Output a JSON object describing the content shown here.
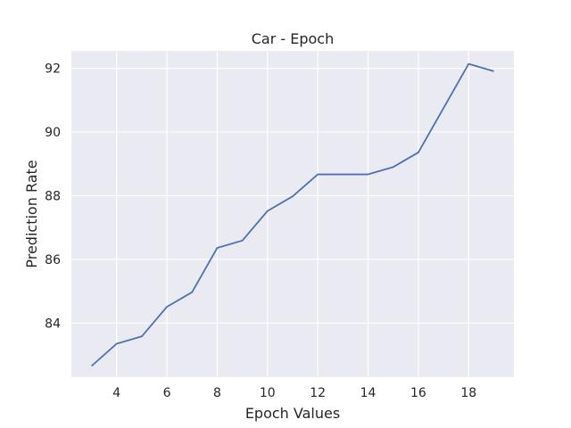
{
  "chart_data": {
    "type": "line",
    "title": "Car - Epoch",
    "xlabel": "Epoch Values",
    "ylabel": "Prediction Rate",
    "x": [
      3,
      4,
      5,
      6,
      7,
      8,
      9,
      10,
      11,
      12,
      13,
      14,
      15,
      16,
      17,
      18,
      19
    ],
    "series": [
      {
        "values": [
          82.65,
          83.35,
          83.58,
          84.51,
          84.97,
          86.36,
          86.59,
          87.52,
          87.98,
          88.67,
          88.67,
          88.67,
          88.9,
          89.36,
          90.75,
          92.14,
          91.91
        ]
      }
    ],
    "xlim": [
      2.2,
      19.8
    ],
    "ylim": [
      82.3,
      92.55
    ],
    "xticks": [
      4,
      6,
      8,
      10,
      12,
      14,
      16,
      18
    ],
    "yticks": [
      84,
      86,
      88,
      90,
      92
    ],
    "grid": true,
    "line_color": "#4c72b0",
    "plot_background": "#eaeaf2",
    "grid_color": "#ffffff"
  }
}
